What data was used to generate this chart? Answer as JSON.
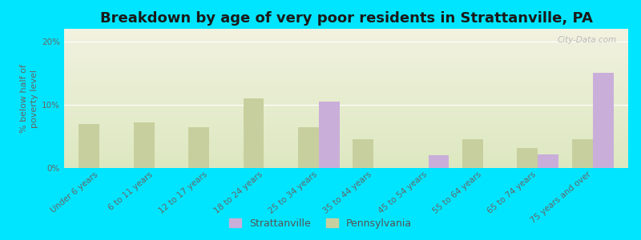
{
  "title": "Breakdown by age of very poor residents in Strattanville, PA",
  "ylabel": "% below half of\npoverty level",
  "categories": [
    "Under 6 years",
    "6 to 11 years",
    "12 to 17 years",
    "18 to 24 years",
    "25 to 34 years",
    "35 to 44 years",
    "45 to 54 years",
    "55 to 64 years",
    "65 to 74 years",
    "75 years and over"
  ],
  "strattanville": [
    0,
    0,
    0,
    0,
    10.5,
    0,
    2.0,
    0,
    2.2,
    15.0
  ],
  "pennsylvania": [
    7.0,
    7.2,
    6.5,
    11.0,
    6.5,
    4.5,
    0,
    4.5,
    3.2,
    4.5
  ],
  "strattanville_color": "#c9aed9",
  "pennsylvania_color": "#c8cf9e",
  "background_top": "#f2f2e0",
  "background_bottom": "#dde8c0",
  "outer_bg": "#00e5ff",
  "ylim": [
    0,
    22
  ],
  "yticks": [
    0,
    10,
    20
  ],
  "ytick_labels": [
    "0%",
    "10%",
    "20%"
  ],
  "bar_width": 0.38,
  "legend_strattanville": "Strattanville",
  "legend_pennsylvania": "Pennsylvania",
  "title_fontsize": 13,
  "axis_fontsize": 8,
  "tick_fontsize": 7.5,
  "watermark": "City-Data.com"
}
